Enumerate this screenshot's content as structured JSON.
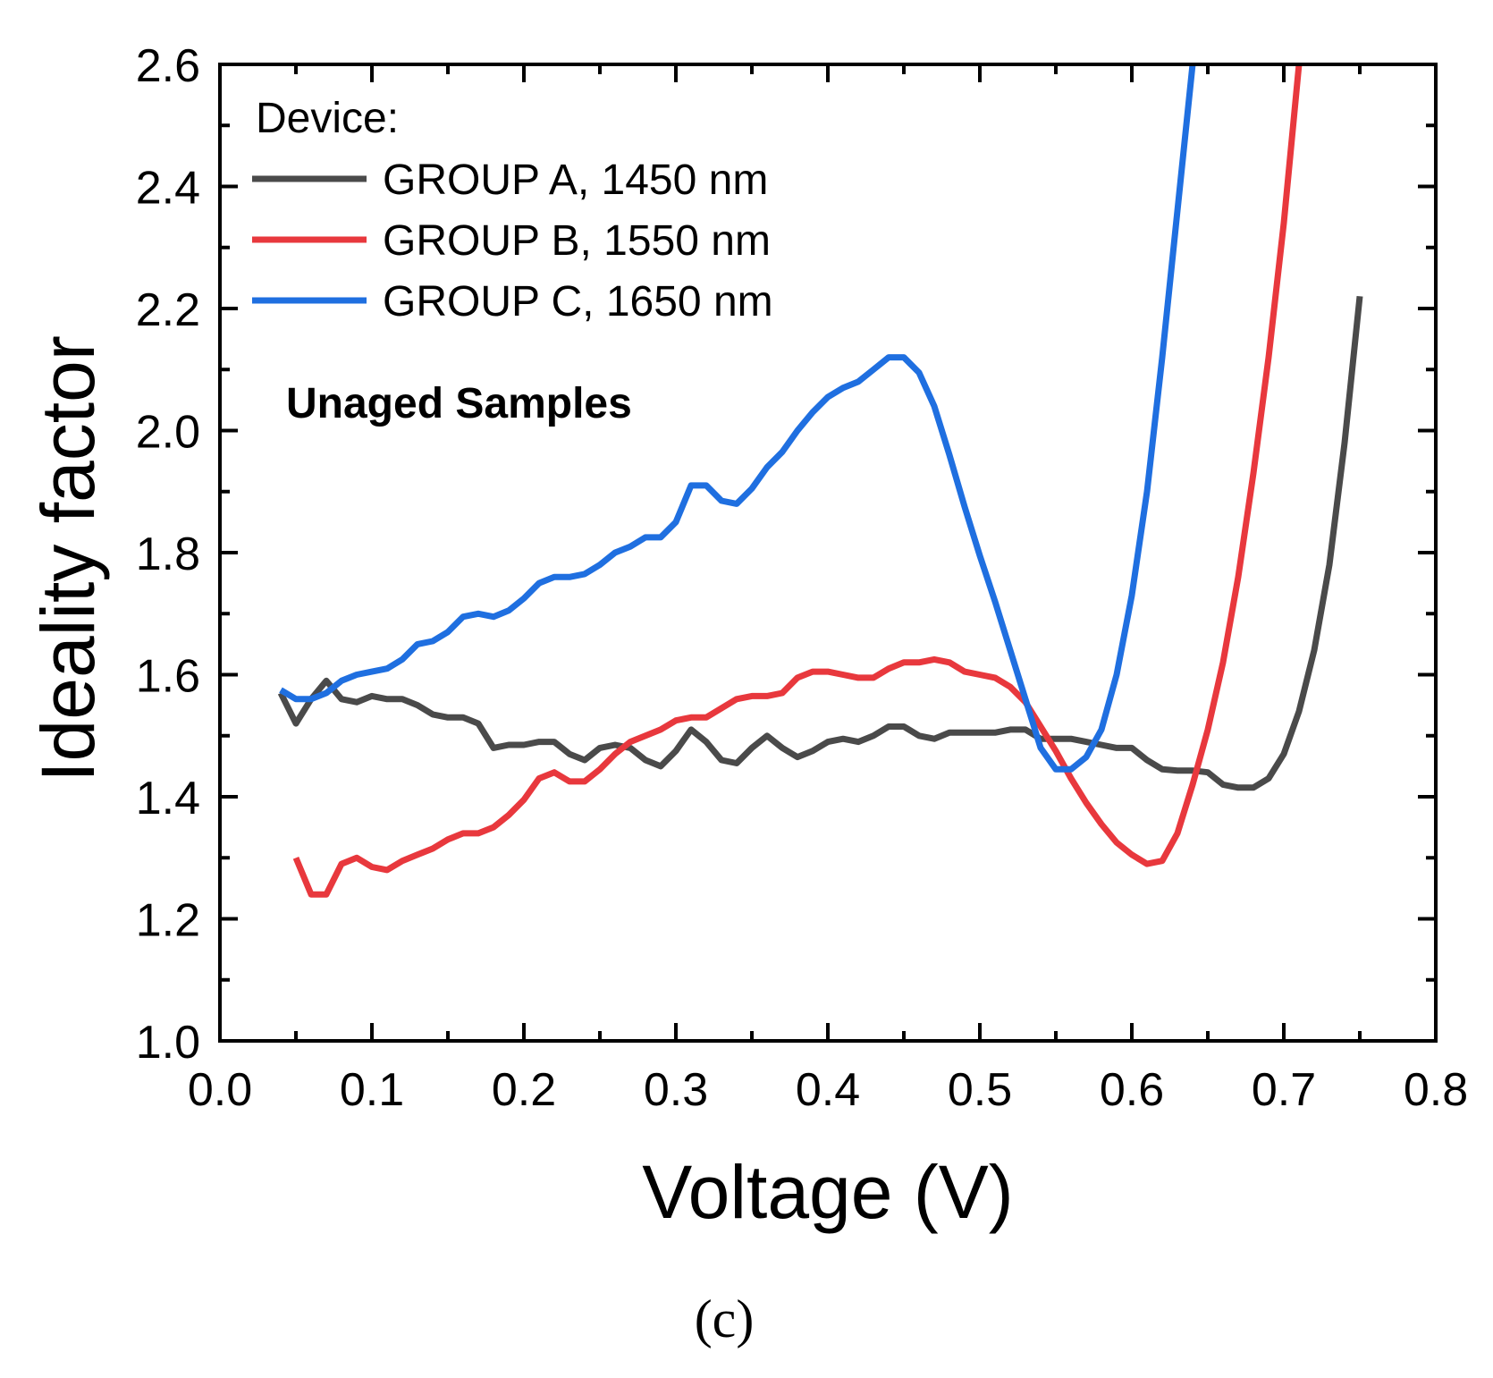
{
  "chart_data": {
    "type": "line",
    "title": "",
    "xlabel": "Voltage (V)",
    "ylabel": "Ideality factor",
    "xlim": [
      0.0,
      0.8
    ],
    "ylim": [
      1.0,
      2.6
    ],
    "xticks": [
      "0.0",
      "0.1",
      "0.2",
      "0.3",
      "0.4",
      "0.5",
      "0.6",
      "0.7",
      "0.8"
    ],
    "yticks": [
      "1.0",
      "1.2",
      "1.4",
      "1.6",
      "1.8",
      "2.0",
      "2.2",
      "2.4",
      "2.6"
    ],
    "grid": false,
    "legend": {
      "title": "Device:",
      "position": "top-left"
    },
    "annotation": "Unaged Samples",
    "panel_label": "(c)",
    "series": [
      {
        "name": "GROUP A, 1450 nm",
        "color": "#4a4a4a",
        "x": [
          0.04,
          0.05,
          0.06,
          0.07,
          0.08,
          0.09,
          0.1,
          0.11,
          0.12,
          0.13,
          0.14,
          0.15,
          0.16,
          0.17,
          0.18,
          0.19,
          0.2,
          0.21,
          0.22,
          0.23,
          0.24,
          0.25,
          0.26,
          0.27,
          0.28,
          0.29,
          0.3,
          0.31,
          0.32,
          0.33,
          0.34,
          0.35,
          0.36,
          0.37,
          0.38,
          0.39,
          0.4,
          0.41,
          0.42,
          0.43,
          0.44,
          0.45,
          0.46,
          0.47,
          0.48,
          0.49,
          0.5,
          0.51,
          0.52,
          0.53,
          0.54,
          0.55,
          0.56,
          0.57,
          0.58,
          0.59,
          0.6,
          0.61,
          0.62,
          0.63,
          0.64,
          0.65,
          0.66,
          0.67,
          0.68,
          0.69,
          0.7,
          0.71,
          0.72,
          0.73,
          0.74,
          0.75
        ],
        "y": [
          1.57,
          1.52,
          1.56,
          1.59,
          1.56,
          1.555,
          1.565,
          1.56,
          1.56,
          1.55,
          1.535,
          1.53,
          1.53,
          1.52,
          1.48,
          1.485,
          1.485,
          1.49,
          1.49,
          1.47,
          1.46,
          1.48,
          1.485,
          1.48,
          1.46,
          1.45,
          1.475,
          1.51,
          1.49,
          1.46,
          1.455,
          1.48,
          1.5,
          1.48,
          1.465,
          1.475,
          1.49,
          1.495,
          1.49,
          1.5,
          1.515,
          1.515,
          1.5,
          1.495,
          1.505,
          1.505,
          1.505,
          1.505,
          1.51,
          1.51,
          1.495,
          1.495,
          1.495,
          1.49,
          1.485,
          1.48,
          1.48,
          1.46,
          1.445,
          1.443,
          1.443,
          1.44,
          1.42,
          1.415,
          1.415,
          1.43,
          1.47,
          1.54,
          1.64,
          1.78,
          1.98,
          2.22
        ]
      },
      {
        "name": "GROUP B, 1550 nm",
        "color": "#e8383d",
        "x": [
          0.05,
          0.06,
          0.07,
          0.08,
          0.09,
          0.1,
          0.11,
          0.12,
          0.13,
          0.14,
          0.15,
          0.16,
          0.17,
          0.18,
          0.19,
          0.2,
          0.21,
          0.22,
          0.23,
          0.24,
          0.25,
          0.26,
          0.27,
          0.28,
          0.29,
          0.3,
          0.31,
          0.32,
          0.33,
          0.34,
          0.35,
          0.36,
          0.37,
          0.38,
          0.39,
          0.4,
          0.41,
          0.42,
          0.43,
          0.44,
          0.45,
          0.46,
          0.47,
          0.48,
          0.49,
          0.5,
          0.51,
          0.52,
          0.53,
          0.54,
          0.55,
          0.56,
          0.57,
          0.58,
          0.59,
          0.6,
          0.61,
          0.62,
          0.63,
          0.64,
          0.65,
          0.66,
          0.67,
          0.68,
          0.69,
          0.7,
          0.71
        ],
        "y": [
          1.3,
          1.24,
          1.24,
          1.29,
          1.3,
          1.285,
          1.28,
          1.295,
          1.305,
          1.315,
          1.33,
          1.34,
          1.34,
          1.35,
          1.37,
          1.395,
          1.43,
          1.44,
          1.425,
          1.425,
          1.445,
          1.47,
          1.49,
          1.5,
          1.51,
          1.525,
          1.53,
          1.53,
          1.545,
          1.56,
          1.565,
          1.565,
          1.57,
          1.595,
          1.605,
          1.605,
          1.6,
          1.595,
          1.595,
          1.61,
          1.62,
          1.62,
          1.625,
          1.62,
          1.605,
          1.6,
          1.595,
          1.58,
          1.555,
          1.515,
          1.475,
          1.43,
          1.39,
          1.355,
          1.325,
          1.305,
          1.29,
          1.295,
          1.34,
          1.42,
          1.51,
          1.62,
          1.76,
          1.93,
          2.12,
          2.34,
          2.6
        ]
      },
      {
        "name": "GROUP C, 1650 nm",
        "color": "#1f6fe0",
        "x": [
          0.04,
          0.05,
          0.06,
          0.07,
          0.08,
          0.09,
          0.1,
          0.11,
          0.12,
          0.13,
          0.14,
          0.15,
          0.16,
          0.17,
          0.18,
          0.19,
          0.2,
          0.21,
          0.22,
          0.23,
          0.24,
          0.25,
          0.26,
          0.27,
          0.28,
          0.29,
          0.3,
          0.31,
          0.32,
          0.33,
          0.34,
          0.35,
          0.36,
          0.37,
          0.38,
          0.39,
          0.4,
          0.41,
          0.42,
          0.43,
          0.44,
          0.45,
          0.46,
          0.47,
          0.48,
          0.49,
          0.5,
          0.51,
          0.52,
          0.53,
          0.54,
          0.55,
          0.56,
          0.57,
          0.58,
          0.59,
          0.6,
          0.61,
          0.62,
          0.63,
          0.64
        ],
        "y": [
          1.575,
          1.56,
          1.56,
          1.57,
          1.59,
          1.6,
          1.605,
          1.61,
          1.625,
          1.65,
          1.655,
          1.67,
          1.695,
          1.7,
          1.695,
          1.705,
          1.725,
          1.75,
          1.76,
          1.76,
          1.765,
          1.78,
          1.8,
          1.81,
          1.825,
          1.825,
          1.85,
          1.91,
          1.91,
          1.885,
          1.88,
          1.905,
          1.94,
          1.965,
          2.0,
          2.03,
          2.055,
          2.07,
          2.08,
          2.1,
          2.12,
          2.12,
          2.095,
          2.04,
          1.96,
          1.875,
          1.795,
          1.72,
          1.64,
          1.56,
          1.48,
          1.445,
          1.445,
          1.465,
          1.51,
          1.6,
          1.73,
          1.9,
          2.12,
          2.36,
          2.6
        ]
      }
    ]
  }
}
